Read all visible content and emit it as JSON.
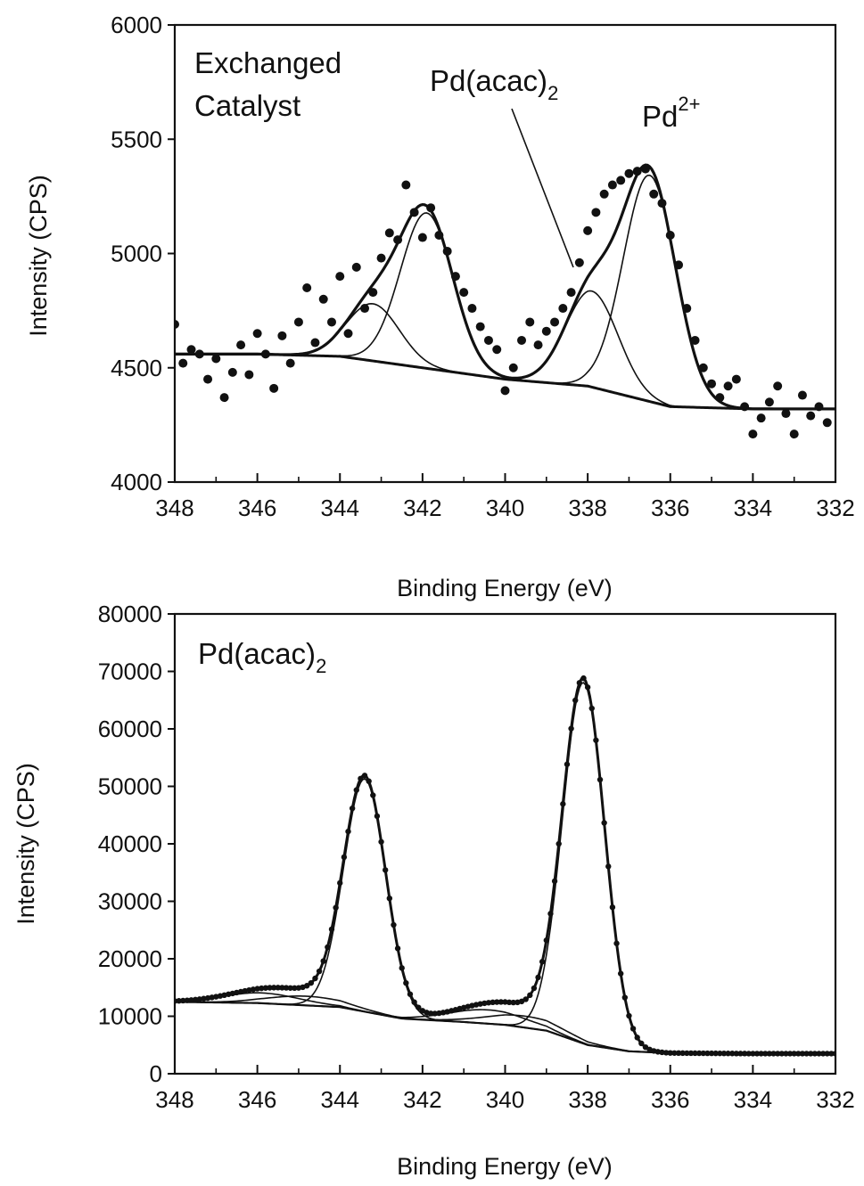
{
  "chart_data": [
    {
      "type": "scatter",
      "title": "",
      "xlabel": "Binding Energy (eV)",
      "ylabel": "Intensity (CPS)",
      "xlim": [
        348,
        332
      ],
      "x_reversed": true,
      "ylim": [
        4000,
        6000
      ],
      "xticks": [
        "348",
        "346",
        "344",
        "342",
        "340",
        "338",
        "336",
        "334",
        "332"
      ],
      "yticks": [
        "4000",
        "4500",
        "5000",
        "5500",
        "6000"
      ],
      "grid": false,
      "annotations": [
        {
          "line1": "Exchanged",
          "line2": "Catalyst"
        },
        {
          "base": "Pd(acac)",
          "sub": "2"
        },
        {
          "base": "Pd",
          "sup": "2+"
        }
      ],
      "data_points": {
        "x": [
          348.0,
          347.8,
          347.6,
          347.4,
          347.2,
          347.0,
          346.8,
          346.6,
          346.4,
          346.2,
          346.0,
          345.8,
          345.6,
          345.4,
          345.2,
          345.0,
          344.8,
          344.6,
          344.4,
          344.2,
          344.0,
          343.8,
          343.6,
          343.4,
          343.2,
          343.0,
          342.8,
          342.6,
          342.4,
          342.2,
          342.0,
          341.8,
          341.6,
          341.4,
          341.2,
          341.0,
          340.8,
          340.6,
          340.4,
          340.2,
          340.0,
          339.8,
          339.6,
          339.4,
          339.2,
          339.0,
          338.8,
          338.6,
          338.4,
          338.2,
          338.0,
          337.8,
          337.6,
          337.4,
          337.2,
          337.0,
          336.8,
          336.6,
          336.4,
          336.2,
          336.0,
          335.8,
          335.6,
          335.4,
          335.2,
          335.0,
          334.8,
          334.6,
          334.4,
          334.2,
          334.0,
          333.8,
          333.6,
          333.4,
          333.2,
          333.0,
          332.8,
          332.6,
          332.4,
          332.2
        ],
        "y": [
          4690,
          4520,
          4580,
          4560,
          4450,
          4540,
          4370,
          4480,
          4600,
          4470,
          4650,
          4560,
          4410,
          4640,
          4520,
          4700,
          4850,
          4610,
          4800,
          4700,
          4900,
          4650,
          4940,
          4760,
          4830,
          4980,
          5090,
          5060,
          5300,
          5180,
          5070,
          5200,
          5080,
          5010,
          4900,
          4830,
          4760,
          4680,
          4620,
          4580,
          4400,
          4500,
          4620,
          4700,
          4600,
          4660,
          4700,
          4760,
          4830,
          4960,
          5100,
          5180,
          5260,
          5300,
          5320,
          5350,
          5360,
          5370,
          5260,
          5220,
          5080,
          4950,
          4760,
          4620,
          4500,
          4430,
          4370,
          4420,
          4450,
          4330,
          4210,
          4280,
          4350,
          4420,
          4300,
          4210,
          4380,
          4290,
          4330,
          4260
        ]
      },
      "baseline": {
        "x": [
          348,
          346,
          344,
          342,
          340,
          338,
          336,
          334,
          332
        ],
        "y": [
          4560,
          4560,
          4550,
          4500,
          4450,
          4420,
          4330,
          4320,
          4320
        ]
      },
      "components": [
        {
          "center_ev": 343.2,
          "height_cps": 250,
          "fwhm_ev": 1.5
        },
        {
          "center_ev": 341.9,
          "height_cps": 680,
          "fwhm_ev": 1.5
        },
        {
          "center_ev": 337.9,
          "height_cps": 420,
          "fwhm_ev": 1.5
        },
        {
          "center_ev": 336.5,
          "height_cps": 990,
          "fwhm_ev": 1.5
        }
      ]
    },
    {
      "type": "scatter",
      "title": "",
      "xlabel": "Binding Energy (eV)",
      "ylabel": "Intensity (CPS)",
      "xlim": [
        348,
        332
      ],
      "x_reversed": true,
      "ylim": [
        0,
        80000
      ],
      "xticks": [
        "348",
        "346",
        "344",
        "342",
        "340",
        "338",
        "336",
        "334",
        "332"
      ],
      "yticks": [
        "0",
        "10000",
        "20000",
        "30000",
        "40000",
        "50000",
        "60000",
        "70000",
        "80000"
      ],
      "grid": false,
      "annotations": [
        {
          "base": "Pd(acac)",
          "sub": "2"
        }
      ],
      "baseline": {
        "x": [
          348,
          346,
          344,
          342.5,
          341,
          340,
          339,
          338,
          337,
          336,
          334,
          332
        ],
        "y": [
          12500,
          12300,
          11600,
          9600,
          9000,
          8500,
          7500,
          5000,
          3900,
          3600,
          3500,
          3500
        ]
      },
      "components": [
        {
          "center_ev": 343.4,
          "height_cps": 40500,
          "fwhm_ev": 1.2
        },
        {
          "center_ev": 338.1,
          "height_cps": 62800,
          "fwhm_ev": 1.2
        },
        {
          "center_ev": 345.9,
          "height_cps": 1800,
          "fwhm_ev": 2.2
        },
        {
          "center_ev": 344.8,
          "height_cps": 1600,
          "fwhm_ev": 2.2
        },
        {
          "center_ev": 340.4,
          "height_cps": 2400,
          "fwhm_ev": 2.2
        },
        {
          "center_ev": 339.5,
          "height_cps": 2000,
          "fwhm_ev": 2.2
        }
      ],
      "point_spacing_ev": 0.1
    }
  ]
}
